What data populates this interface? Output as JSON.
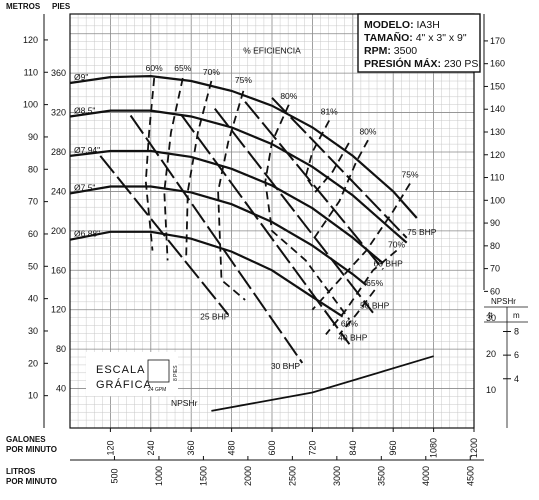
{
  "chart_data": {
    "type": "line",
    "title": "",
    "model": {
      "model_label": "MODELO:",
      "model_value": "IA3H",
      "size_label": "TAMAÑO:",
      "size_value": "4\" x 3\" x 9\"",
      "rpm_label": "RPM:",
      "rpm_value": "3500",
      "pmax_label": "PRESIÓN MÁX:",
      "pmax_value": "230 PSI"
    },
    "axes": {
      "left_outer_title": "METROS",
      "left_inner_title": "PIES",
      "x_primary_title": "GALONES POR MINUTO",
      "x_secondary_title": "LITROS POR MINUTO",
      "efficiency_title": "% EFICIENCIA",
      "x_gpm_range": [
        0,
        1200
      ],
      "y_feet_range": [
        0,
        400
      ],
      "x_gpm_ticks": [
        "120",
        "240",
        "360",
        "480",
        "600",
        "720",
        "840",
        "960",
        "1080",
        "1200"
      ],
      "x_lpm_ticks": [
        "500",
        "1000",
        "1500",
        "2000",
        "2500",
        "3000",
        "3500",
        "4000",
        "4500"
      ],
      "y_feet_ticks": [
        "40",
        "80",
        "120",
        "160",
        "200",
        "240",
        "280",
        "320",
        "360"
      ],
      "y_meters_ticks": [
        "10",
        "20",
        "30",
        "40",
        "50",
        "60",
        "70",
        "80",
        "90",
        "100",
        "110",
        "120"
      ],
      "y_psi_ticks": [
        "60",
        "70",
        "80",
        "90",
        "100",
        "110",
        "120",
        "130",
        "140",
        "150",
        "160",
        "170"
      ]
    },
    "impeller_curves": [
      {
        "name": "Ø9\"",
        "gpm": [
          0,
          120,
          240,
          360,
          480,
          600,
          720,
          840,
          960,
          1030
        ],
        "feet": [
          350,
          356,
          357,
          352,
          342,
          327,
          305,
          276,
          240,
          213
        ]
      },
      {
        "name": "Ø8.5\"",
        "gpm": [
          0,
          120,
          240,
          360,
          480,
          600,
          720,
          840,
          960,
          1000
        ],
        "feet": [
          316,
          322,
          322,
          316,
          305,
          288,
          265,
          236,
          200,
          188
        ]
      },
      {
        "name": "Ø7.94\"",
        "gpm": [
          0,
          120,
          240,
          360,
          480,
          600,
          720,
          840,
          930
        ],
        "feet": [
          276,
          281,
          281,
          275,
          263,
          246,
          223,
          193,
          167
        ]
      },
      {
        "name": "Ø7.5\"",
        "gpm": [
          0,
          120,
          240,
          360,
          480,
          600,
          720,
          840,
          880
        ],
        "feet": [
          238,
          245,
          245,
          239,
          227,
          209,
          185,
          156,
          145
        ]
      },
      {
        "name": "Ø6.88\"",
        "gpm": [
          0,
          120,
          240,
          360,
          480,
          600,
          720,
          810
        ],
        "feet": [
          191,
          199,
          199,
          192,
          179,
          160,
          133,
          113
        ]
      }
    ],
    "bhp_lines": [
      {
        "name": "25 BHP",
        "gpm": [
          90,
          470
        ],
        "feet": [
          276,
          115
        ],
        "label_gpm": 430,
        "label_feet": 110
      },
      {
        "name": "30 BHP",
        "gpm": [
          180,
          690
        ],
        "feet": [
          317,
          66
        ],
        "label_gpm": 640,
        "label_feet": 60
      },
      {
        "name": "40 BHP",
        "gpm": [
          330,
          830
        ],
        "feet": [
          318,
          85
        ],
        "label_gpm": 840,
        "label_feet": 89
      },
      {
        "name": "50 BHP",
        "gpm": [
          430,
          900
        ],
        "feet": [
          324,
          117
        ],
        "label_gpm": 905,
        "label_feet": 121
      },
      {
        "name": "60 BHP",
        "gpm": [
          520,
          930
        ],
        "feet": [
          331,
          161
        ],
        "label_gpm": 945,
        "label_feet": 164
      },
      {
        "name": "75 BHP",
        "gpm": [
          600,
          1000
        ],
        "feet": [
          335,
          193
        ],
        "label_gpm": 1045,
        "label_feet": 196
      }
    ],
    "efficiency_labels": [
      {
        "name": "60%",
        "gpm": 250,
        "feet": 362
      },
      {
        "name": "65%",
        "gpm": 335,
        "feet": 362
      },
      {
        "name": "70%",
        "gpm": 420,
        "feet": 358
      },
      {
        "name": "75%",
        "gpm": 515,
        "feet": 350
      },
      {
        "name": "80%",
        "gpm": 650,
        "feet": 334
      },
      {
        "name": "81%",
        "gpm": 770,
        "feet": 318
      },
      {
        "name": "80%",
        "gpm": 885,
        "feet": 298
      },
      {
        "name": "75%",
        "gpm": 1010,
        "feet": 254
      },
      {
        "name": "70%",
        "gpm": 970,
        "feet": 183
      },
      {
        "name": "65%",
        "gpm": 905,
        "feet": 144
      },
      {
        "name": "60%",
        "gpm": 830,
        "feet": 103
      }
    ],
    "npshr": {
      "name": "NPSHr",
      "gpm": [
        420,
        720,
        1080
      ],
      "ft": [
        4.2,
        9.3,
        19.4
      ],
      "label_gpm": 300,
      "label_ft": 5.6,
      "axis_title": "NPSHr",
      "ft_label": "ft",
      "m_label": "m",
      "ft_ticks": [
        "10",
        "20",
        "30"
      ],
      "m_ticks": [
        "4",
        "6",
        "8"
      ]
    },
    "scale_legend": {
      "line1": "ESCALA",
      "line2": "GRÁFICA",
      "unit_feet": "8 PIES",
      "unit_gpm": "24 GPM"
    }
  }
}
